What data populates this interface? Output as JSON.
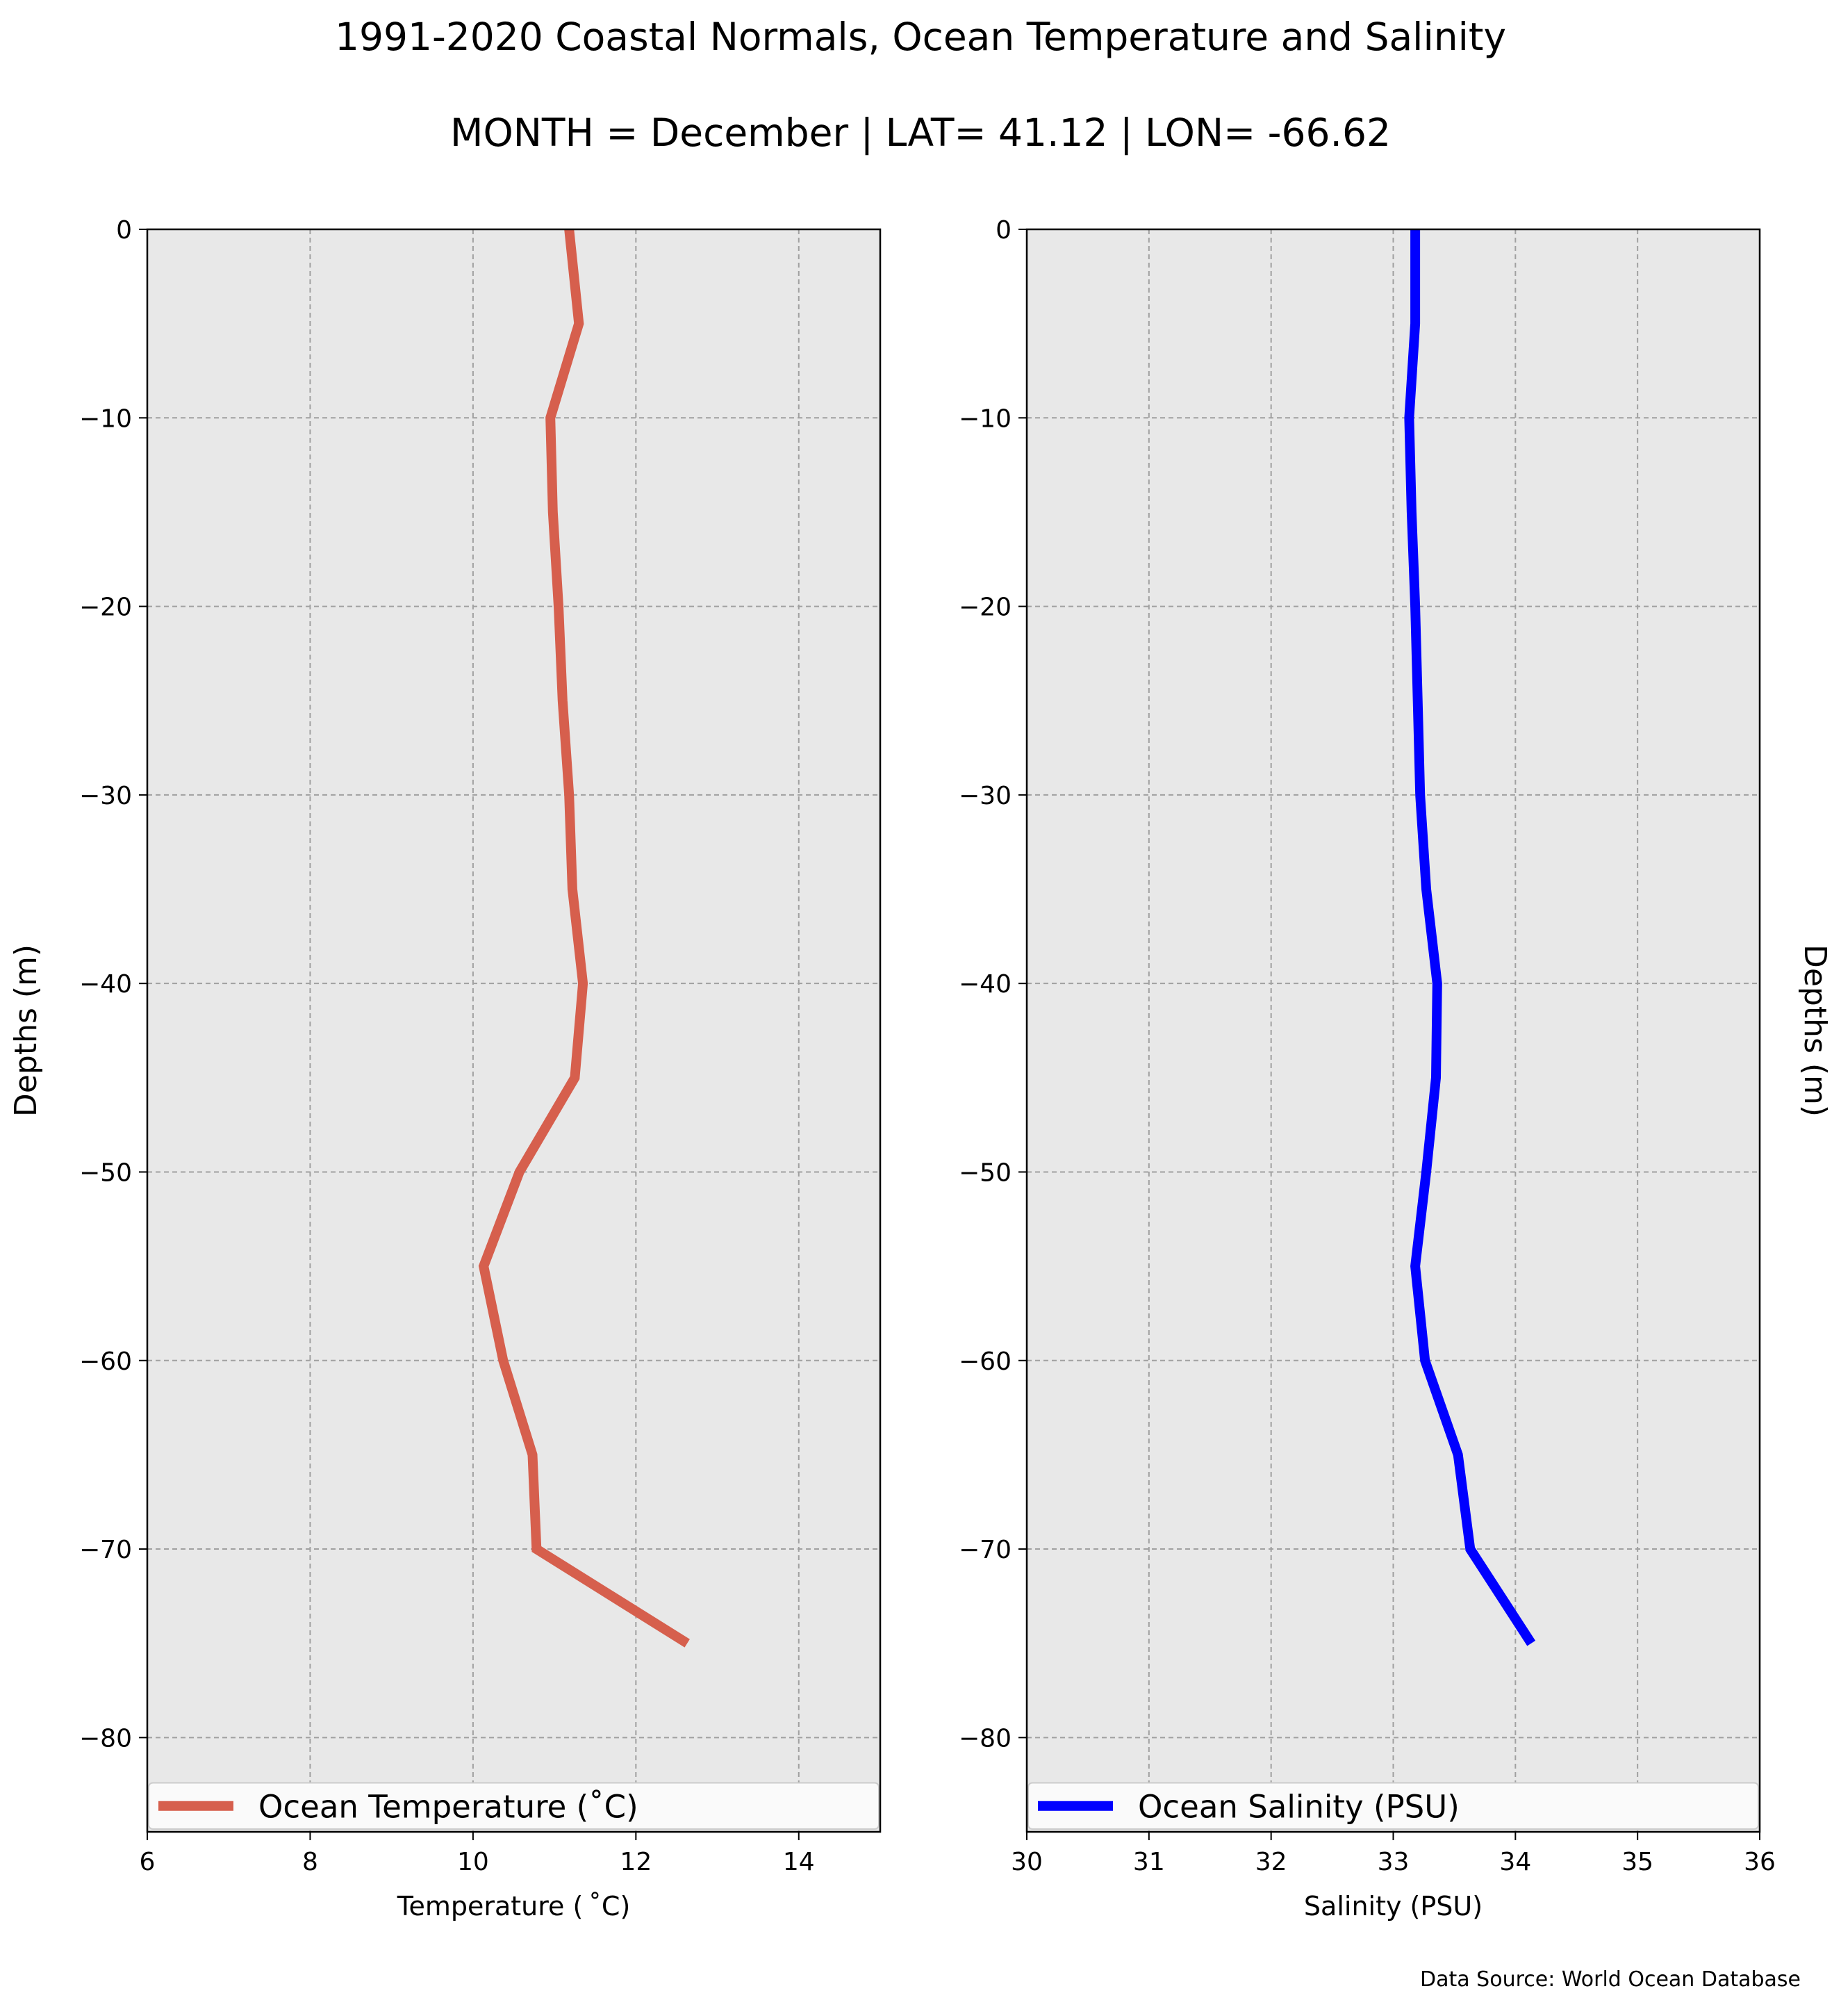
{
  "figure": {
    "title": "1991-2020 Coastal Normals, Ocean Temperature and Salinity",
    "subtitle": "MONTH = December | LAT= 41.12 | LON= -66.62",
    "source": "Data Source: World Ocean Database"
  },
  "chart_data": [
    {
      "type": "line",
      "xlabel": "Temperature ($^\\circ$C)",
      "xlabel_display": "Temperature ( ˚C)",
      "ylabel": "Depths (m)",
      "xlim": [
        6,
        15
      ],
      "ylim": [
        -85,
        0
      ],
      "xticks": [
        6,
        8,
        10,
        12,
        14
      ],
      "yticks": [
        0,
        -10,
        -20,
        -30,
        -40,
        -50,
        -60,
        -70,
        -80
      ],
      "grid": true,
      "legend": "lower",
      "series": [
        {
          "name": "Ocean Temperature (˚C)",
          "color": "#d65f4d",
          "points": [
            {
              "x": 11.18,
              "y": 0
            },
            {
              "x": 11.3,
              "y": -5
            },
            {
              "x": 10.95,
              "y": -10
            },
            {
              "x": 10.98,
              "y": -15
            },
            {
              "x": 11.05,
              "y": -20
            },
            {
              "x": 11.1,
              "y": -25
            },
            {
              "x": 11.18,
              "y": -30
            },
            {
              "x": 11.22,
              "y": -35
            },
            {
              "x": 11.35,
              "y": -40
            },
            {
              "x": 11.25,
              "y": -45
            },
            {
              "x": 10.57,
              "y": -50
            },
            {
              "x": 10.13,
              "y": -55
            },
            {
              "x": 10.37,
              "y": -60
            },
            {
              "x": 10.73,
              "y": -65
            },
            {
              "x": 10.78,
              "y": -70
            },
            {
              "x": 12.63,
              "y": -75
            }
          ]
        }
      ]
    },
    {
      "type": "line",
      "xlabel": "Salinity (PSU)",
      "ylabel": "Depths (m)",
      "xlim": [
        30,
        36
      ],
      "ylim": [
        -85,
        0
      ],
      "xticks": [
        30,
        31,
        32,
        33,
        34,
        35,
        36
      ],
      "yticks": [
        0,
        -10,
        -20,
        -30,
        -40,
        -50,
        -60,
        -70,
        -80
      ],
      "grid": true,
      "legend": "lower",
      "series": [
        {
          "name": "Ocean Salinity (PSU)",
          "color": "#0000ff",
          "points": [
            {
              "x": 33.18,
              "y": 0
            },
            {
              "x": 33.18,
              "y": -5
            },
            {
              "x": 33.13,
              "y": -10
            },
            {
              "x": 33.15,
              "y": -15
            },
            {
              "x": 33.18,
              "y": -20
            },
            {
              "x": 33.2,
              "y": -25
            },
            {
              "x": 33.22,
              "y": -30
            },
            {
              "x": 33.27,
              "y": -35
            },
            {
              "x": 33.36,
              "y": -40
            },
            {
              "x": 33.35,
              "y": -45
            },
            {
              "x": 33.27,
              "y": -50
            },
            {
              "x": 33.18,
              "y": -55
            },
            {
              "x": 33.26,
              "y": -60
            },
            {
              "x": 33.53,
              "y": -65
            },
            {
              "x": 33.63,
              "y": -70
            },
            {
              "x": 34.13,
              "y": -75
            }
          ]
        }
      ]
    }
  ]
}
